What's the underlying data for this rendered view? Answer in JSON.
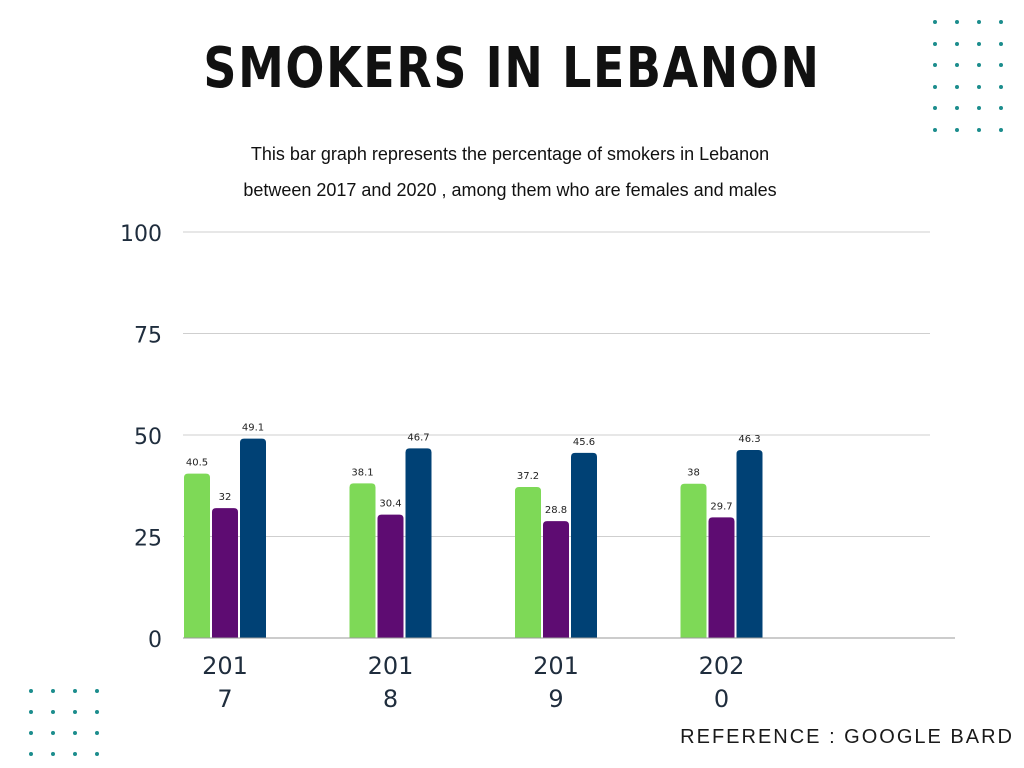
{
  "header": {
    "title": "SMOKERS IN LEBANON",
    "subtitle_line1": "This bar graph represents the percentage of smokers in Lebanon",
    "subtitle_line2": "between 2017 and 2020 , among them who are females and males"
  },
  "footer": {
    "reference": "REFERENCE : GOOGLE BARD"
  },
  "chart_data": {
    "type": "bar",
    "categories": [
      "2017",
      "2018",
      "2019",
      "2020"
    ],
    "category_label_lines": [
      [
        "201",
        "7"
      ],
      [
        "201",
        "8"
      ],
      [
        "201",
        "9"
      ],
      [
        "202",
        "0"
      ]
    ],
    "series": [
      {
        "values": [
          40.5,
          38.1,
          37.2,
          38
        ],
        "color": "#7ed957"
      },
      {
        "values": [
          32,
          30.4,
          28.8,
          29.7
        ],
        "color": "#5e0c72"
      },
      {
        "values": [
          49.1,
          46.7,
          45.6,
          46.3
        ],
        "color": "#004175"
      }
    ],
    "yticks": [
      0,
      25,
      50,
      75,
      100
    ],
    "ylim": [
      0,
      100
    ],
    "grid": true,
    "legend": "none",
    "xlabel": "",
    "ylabel": ""
  },
  "decor": {
    "dot_color": "#1c8d8d"
  }
}
